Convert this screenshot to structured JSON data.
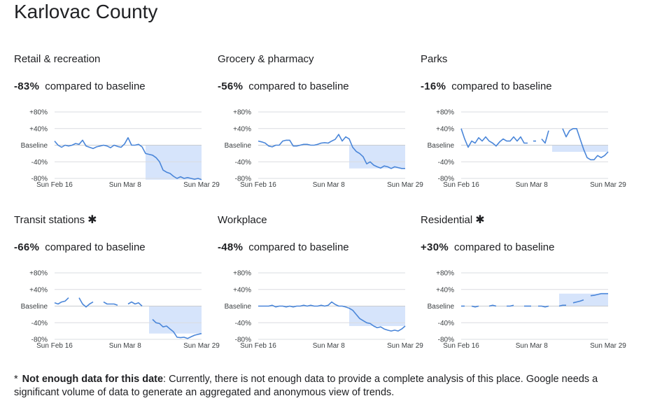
{
  "page": {
    "title": "Karlovac County"
  },
  "chart_data": [
    {
      "type": "line",
      "title": "Retail & recreation",
      "summary_value": "-83%",
      "summary_text": "compared to baseline",
      "y_ticks": [
        "+80%",
        "+40%",
        "Baseline",
        "-40%",
        "-80%"
      ],
      "x_ticks": [
        "Sun Feb 16",
        "Sun Mar 8",
        "Sun Mar 29"
      ],
      "ylim": [
        -80,
        80
      ],
      "x_domain": [
        0,
        43
      ],
      "series": [
        {
          "values": [
            10,
            0,
            -5,
            0,
            -2,
            0,
            4,
            2,
            12,
            -2,
            -5,
            -8,
            -4,
            -2,
            0,
            -2,
            -6,
            0,
            -3,
            -5,
            3,
            18,
            0,
            0,
            2,
            -4,
            -20,
            -22,
            -24,
            -30,
            -40,
            -60,
            -65,
            -68,
            -75,
            -80,
            -76,
            -80,
            -78,
            -80,
            -82,
            -80,
            -83
          ]
        }
      ],
      "shaded_from": 26
    },
    {
      "type": "line",
      "title": "Grocery & pharmacy",
      "summary_value": "-56%",
      "summary_text": "compared to baseline",
      "y_ticks": [
        "+80%",
        "+40%",
        "Baseline",
        "-40%",
        "-80%"
      ],
      "x_ticks": [
        "Sun Feb 16",
        "Sun Mar 8",
        "Sun Mar 29"
      ],
      "ylim": [
        -80,
        80
      ],
      "x_domain": [
        0,
        43
      ],
      "series": [
        {
          "values": [
            10,
            8,
            5,
            -2,
            -4,
            0,
            0,
            10,
            12,
            12,
            -2,
            -2,
            0,
            2,
            2,
            0,
            0,
            2,
            5,
            6,
            5,
            10,
            14,
            26,
            10,
            20,
            15,
            -5,
            -15,
            -20,
            -28,
            -45,
            -40,
            -48,
            -52,
            -55,
            -50,
            -52,
            -56,
            -52,
            -54,
            -56,
            -56
          ]
        }
      ],
      "shaded_from": 26
    },
    {
      "type": "line",
      "title": "Parks",
      "summary_value": "-16%",
      "summary_text": "compared to baseline",
      "y_ticks": [
        "+80%",
        "+40%",
        "Baseline",
        "-40%",
        "-80%"
      ],
      "x_ticks": [
        "Sun Feb 16",
        "Sun Mar 8",
        "Sun Mar 29"
      ],
      "ylim": [
        -80,
        80
      ],
      "x_domain": [
        0,
        43
      ],
      "series": [
        {
          "values": [
            40,
            15,
            -5,
            10,
            5,
            18,
            10,
            20,
            10,
            5,
            -2,
            8,
            15,
            10,
            10,
            20,
            10,
            20,
            5,
            5,
            null,
            10,
            null,
            15,
            5,
            35,
            null,
            null,
            null,
            40,
            20,
            35,
            40,
            40,
            15,
            -10,
            -30,
            -35,
            -35,
            -25,
            -30,
            -25,
            -16
          ]
        }
      ],
      "shaded_from": 26
    },
    {
      "type": "line",
      "title": "Transit stations",
      "starred": true,
      "summary_value": "-66%",
      "summary_text": "compared to baseline",
      "y_ticks": [
        "+80%",
        "+40%",
        "Baseline",
        "-40%",
        "-80%"
      ],
      "x_ticks": [
        "Sun Feb 16",
        "Sun Mar 8",
        "Sun Mar 29"
      ],
      "ylim": [
        -80,
        80
      ],
      "x_domain": [
        0,
        43
      ],
      "series": [
        {
          "values": [
            8,
            5,
            10,
            12,
            20,
            null,
            null,
            20,
            5,
            -2,
            5,
            10,
            null,
            null,
            10,
            5,
            5,
            5,
            2,
            null,
            null,
            5,
            10,
            5,
            8,
            0,
            null,
            null,
            -32,
            -40,
            -42,
            -50,
            -48,
            -55,
            -62,
            -75,
            -76,
            -75,
            -78,
            -74,
            -70,
            -68,
            -66
          ]
        }
      ],
      "shaded_from": 27
    },
    {
      "type": "line",
      "title": "Workplace",
      "summary_value": "-48%",
      "summary_text": "compared to baseline",
      "y_ticks": [
        "+80%",
        "+40%",
        "Baseline",
        "-40%",
        "-80%"
      ],
      "x_ticks": [
        "Sun Feb 16",
        "Sun Mar 8",
        "Sun Mar 29"
      ],
      "ylim": [
        -80,
        80
      ],
      "x_domain": [
        0,
        43
      ],
      "series": [
        {
          "values": [
            0,
            0,
            0,
            0,
            2,
            -2,
            0,
            0,
            -2,
            0,
            -2,
            0,
            0,
            2,
            0,
            2,
            0,
            0,
            2,
            0,
            2,
            10,
            4,
            0,
            0,
            -2,
            -5,
            -10,
            -20,
            -30,
            -35,
            -40,
            -42,
            -48,
            -52,
            -50,
            -55,
            -58,
            -60,
            -58,
            -60,
            -55,
            -48
          ]
        }
      ],
      "shaded_from": 26
    },
    {
      "type": "line",
      "title": "Residential",
      "starred": true,
      "summary_value": "+30%",
      "summary_text": "compared to baseline",
      "y_ticks": [
        "+80%",
        "+40%",
        "Baseline",
        "-40%",
        "-80%"
      ],
      "x_ticks": [
        "Sun Feb 16",
        "Sun Mar 8",
        "Sun Mar 29"
      ],
      "ylim": [
        -80,
        80
      ],
      "x_domain": [
        0,
        43
      ],
      "series": [
        {
          "values": [
            0,
            0,
            null,
            0,
            -2,
            0,
            null,
            null,
            0,
            2,
            0,
            null,
            null,
            0,
            0,
            2,
            null,
            null,
            0,
            0,
            0,
            null,
            0,
            0,
            -2,
            0,
            null,
            null,
            0,
            2,
            2,
            null,
            8,
            10,
            12,
            15,
            null,
            25,
            26,
            28,
            30,
            30,
            30
          ]
        }
      ],
      "shaded_from": 28
    }
  ],
  "footnote": {
    "star": "*",
    "bold": "Not enough data for this date",
    "text": ": Currently, there is not enough data to provide a complete analysis of this place. Google needs a significant volume of data to generate an aggregated and anonymous view of trends."
  },
  "colors": {
    "line": "#4a86d9",
    "shade": "#d6e4fb",
    "grid": "#dadce0",
    "baseline": "#c8ccd0"
  }
}
